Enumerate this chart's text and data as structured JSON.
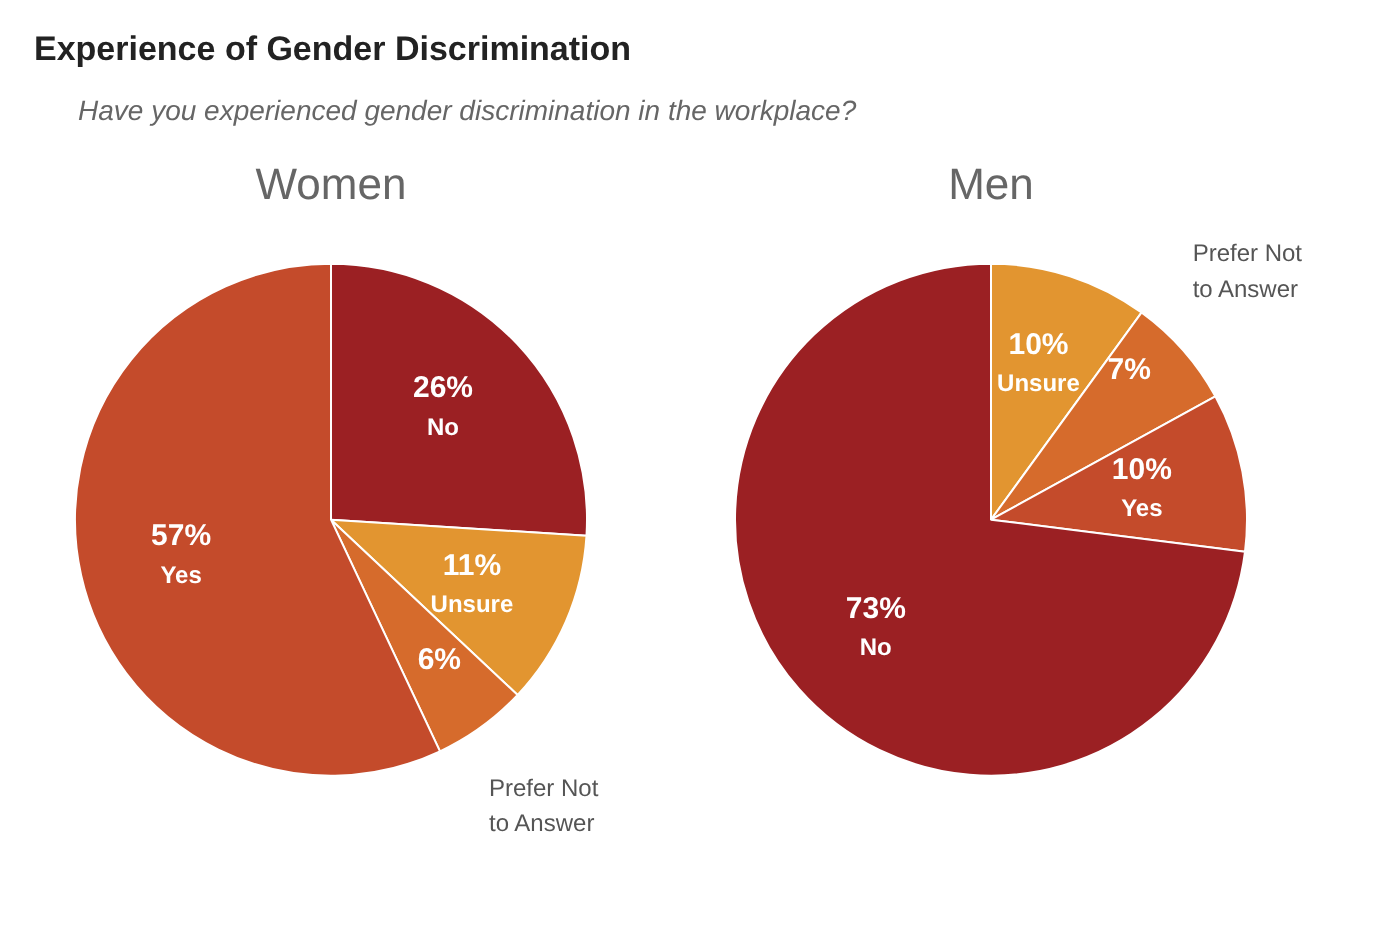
{
  "chart_data": [
    {
      "type": "other",
      "title": "Experience of Gender Discrimination",
      "subtitle": "Have you experienced gender discrimination in the workplace?"
    },
    {
      "type": "pie",
      "title": "Women",
      "categories": [
        "No",
        "Unsure",
        "Prefer Not to Answer",
        "Yes"
      ],
      "values": [
        26,
        11,
        6,
        57
      ],
      "colors": [
        "#9b2023",
        "#e29530",
        "#d66b2c",
        "#c44b2b"
      ],
      "value_labels": [
        "26%",
        "11%",
        "6%",
        "57%"
      ],
      "legend": false
    },
    {
      "type": "pie",
      "title": "Men",
      "categories": [
        "Unsure",
        "Prefer Not to Answer",
        "Yes",
        "No"
      ],
      "values": [
        10,
        7,
        10,
        73
      ],
      "colors": [
        "#e29530",
        "#d66b2c",
        "#c44b2b",
        "#9b2023"
      ],
      "value_labels": [
        "10%",
        "7%",
        "10%",
        "73%"
      ],
      "legend": false
    }
  ]
}
